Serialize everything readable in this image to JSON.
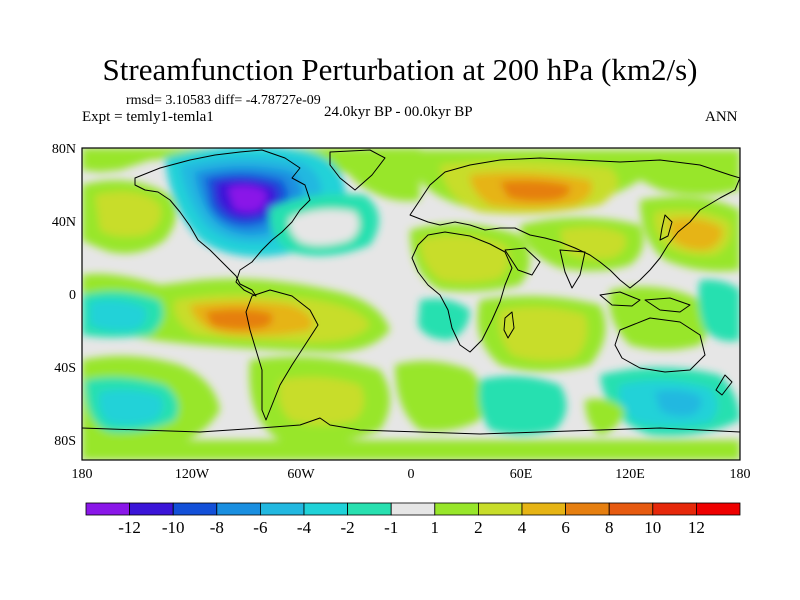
{
  "header": {
    "title": "Streamfunction Perturbation at 200 hPa (km2/s)",
    "stats": "rmsd= 3.10583 diff= -4.78727e-09",
    "experiment": "Expt = temly1-temla1",
    "period": "24.0kyr BP - 00.0kyr BP",
    "season": "ANN"
  },
  "map": {
    "x_ticks": [
      "180",
      "120W",
      "60W",
      "0",
      "60E",
      "120E",
      "180"
    ],
    "y_ticks": [
      "80N",
      "40N",
      "0",
      "40S",
      "80S"
    ]
  },
  "colorbar": {
    "labels": [
      "-12",
      "-10",
      "-8",
      "-6",
      "-4",
      "-2",
      "-1",
      "1",
      "2",
      "4",
      "6",
      "8",
      "10",
      "12"
    ],
    "colors": [
      "#8a17e8",
      "#3b15d8",
      "#1350d8",
      "#1a8fe0",
      "#22b8e0",
      "#20d2d8",
      "#28e0b0",
      "#e6e6e6",
      "#98e62a",
      "#c8dd2a",
      "#e6b415",
      "#e67f10",
      "#e65a10",
      "#e6280a",
      "#ee0000"
    ]
  }
}
